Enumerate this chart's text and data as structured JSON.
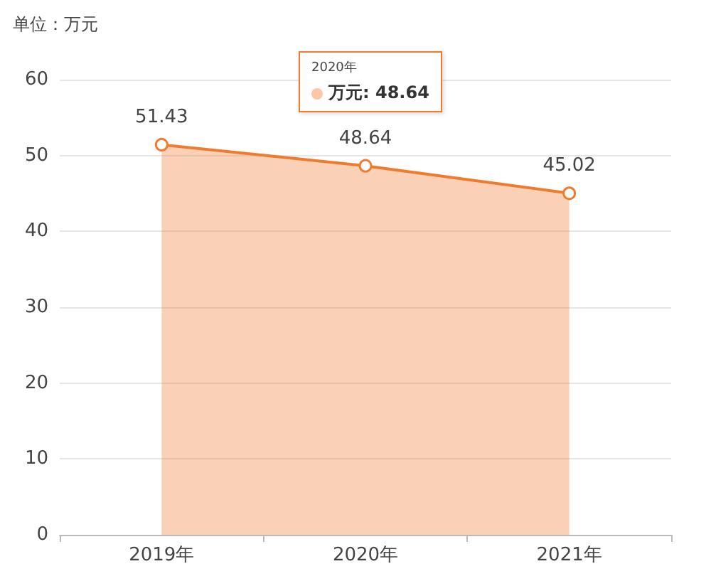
{
  "chart_data": {
    "type": "area",
    "ylabel": "单位：万元",
    "categories": [
      "2019年",
      "2020年",
      "2021年"
    ],
    "series": [
      {
        "color": "#f07b2f",
        "values": [
          51.43,
          48.64,
          45.02
        ]
      }
    ],
    "ylim": [
      0,
      60
    ],
    "yticks": [
      0,
      10,
      20,
      30,
      40,
      50,
      60
    ],
    "grid": "y",
    "marker": "circle",
    "line_style": "solid",
    "data_labels": true,
    "annotations": [
      "2020年",
      "万元: 48.64"
    ]
  }
}
